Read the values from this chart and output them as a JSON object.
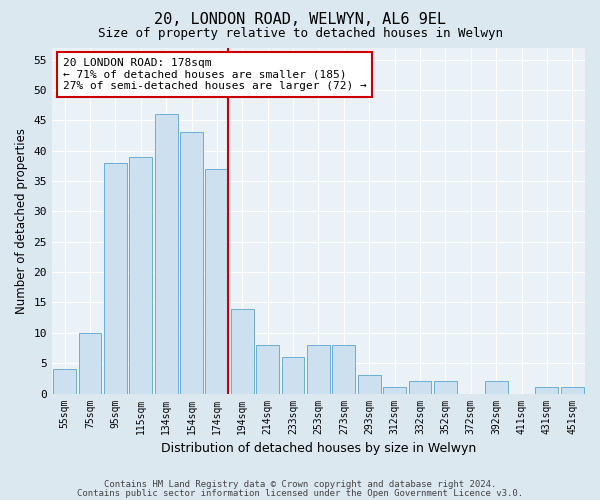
{
  "title1": "20, LONDON ROAD, WELWYN, AL6 9EL",
  "title2": "Size of property relative to detached houses in Welwyn",
  "xlabel": "Distribution of detached houses by size in Welwyn",
  "ylabel": "Number of detached properties",
  "categories": [
    "55sqm",
    "75sqm",
    "95sqm",
    "115sqm",
    "134sqm",
    "154sqm",
    "174sqm",
    "194sqm",
    "214sqm",
    "233sqm",
    "253sqm",
    "273sqm",
    "293sqm",
    "312sqm",
    "332sqm",
    "352sqm",
    "372sqm",
    "392sqm",
    "411sqm",
    "431sqm",
    "451sqm"
  ],
  "values": [
    4,
    10,
    38,
    39,
    46,
    43,
    37,
    14,
    8,
    6,
    8,
    8,
    3,
    1,
    2,
    2,
    0,
    2,
    0,
    1,
    1
  ],
  "bar_color": "#cce0f0",
  "bar_edge_color": "#6aafd6",
  "property_line_color": "#cc0000",
  "annotation_text": "20 LONDON ROAD: 178sqm\n← 71% of detached houses are smaller (185)\n27% of semi-detached houses are larger (72) →",
  "annotation_box_color": "#ffffff",
  "annotation_box_edge_color": "#cc0000",
  "ylim": [
    0,
    57
  ],
  "yticks": [
    0,
    5,
    10,
    15,
    20,
    25,
    30,
    35,
    40,
    45,
    50,
    55
  ],
  "footer1": "Contains HM Land Registry data © Crown copyright and database right 2024.",
  "footer2": "Contains public sector information licensed under the Open Government Licence v3.0.",
  "bg_color": "#dce8f0",
  "plot_bg_color": "#eaf2f8"
}
